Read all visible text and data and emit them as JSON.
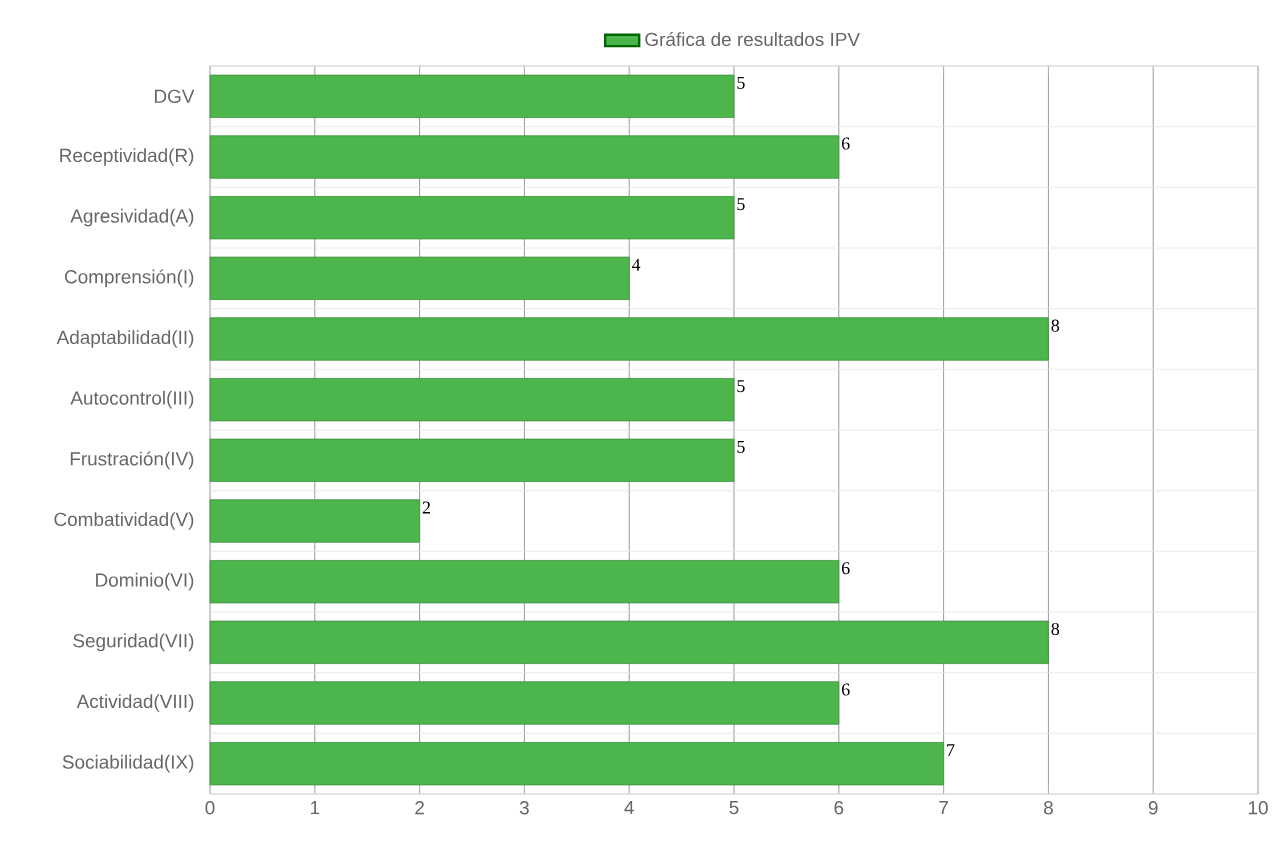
{
  "chart_data": {
    "type": "bar",
    "orientation": "horizontal",
    "categories": [
      "DGV",
      "Receptividad(R)",
      "Agresividad(A)",
      "Comprensión(I)",
      "Adaptabilidad(II)",
      "Autocontrol(III)",
      "Frustración(IV)",
      "Combatividad(V)",
      "Dominio(VI)",
      "Seguridad(VII)",
      "Actividad(VIII)",
      "Sociabilidad(IX)"
    ],
    "series": [
      {
        "name": "Gráfica de resultados IPV",
        "color": "#4cb54c",
        "values": [
          5,
          6,
          5,
          4,
          8,
          5,
          5,
          2,
          6,
          8,
          6,
          7
        ]
      }
    ],
    "xlim": [
      0,
      10
    ],
    "xticks": [
      0,
      1,
      2,
      3,
      4,
      5,
      6,
      7,
      8,
      9,
      10
    ],
    "grid": true,
    "legend": "top",
    "data_labels": true
  }
}
